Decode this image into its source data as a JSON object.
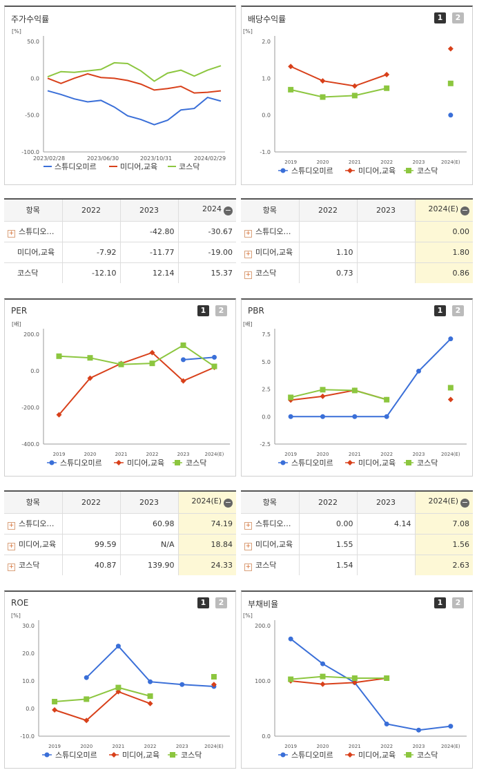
{
  "colors": {
    "company": "#3a6fd8",
    "media": "#d8401a",
    "kosdaq": "#8cc63f",
    "toggle_active": "#333333",
    "toggle_inactive": "#bbbbbb"
  },
  "charts": {
    "stock": {
      "title": "주가수익률",
      "unit": "[%]",
      "toggle": null
    },
    "dividend": {
      "title": "배당수익률",
      "unit": "[%]",
      "toggle": [
        "1",
        "2"
      ]
    },
    "per": {
      "title": "PER",
      "unit": "[배]",
      "toggle": [
        "1",
        "2"
      ]
    },
    "pbr": {
      "title": "PBR",
      "unit": "[배]",
      "toggle": [
        "1",
        "2"
      ]
    },
    "roe": {
      "title": "ROE",
      "unit": "[%]",
      "toggle": [
        "1",
        "2"
      ]
    },
    "debt": {
      "title": "부채비율",
      "unit": "[%]",
      "toggle": [
        "1",
        "2"
      ]
    }
  },
  "legend": {
    "company": "스튜디오미르",
    "media": "미디어,교육",
    "kosdaq": "코스닥"
  },
  "tables": {
    "stock": {
      "headers": [
        "항목",
        "2022",
        "2023",
        "2024"
      ],
      "rows": [
        {
          "name": "스튜디오…",
          "plus": true,
          "v": [
            "",
            "-42.80",
            "-30.67"
          ]
        },
        {
          "name": "미디어,교육",
          "plus": false,
          "v": [
            "-7.92",
            "-11.77",
            "-19.00"
          ]
        },
        {
          "name": "코스닥",
          "plus": false,
          "v": [
            "-12.10",
            "12.14",
            "15.37"
          ]
        }
      ]
    },
    "dividend": {
      "headers": [
        "항목",
        "2022",
        "2023",
        "2024(E)"
      ],
      "rows": [
        {
          "name": "스튜디오…",
          "plus": true,
          "v": [
            "",
            "",
            "0.00"
          ]
        },
        {
          "name": "미디어,교육",
          "plus": true,
          "v": [
            "1.10",
            "",
            "1.80"
          ]
        },
        {
          "name": "코스닥",
          "plus": true,
          "v": [
            "0.73",
            "",
            "0.86"
          ]
        }
      ]
    },
    "per": {
      "headers": [
        "항목",
        "2022",
        "2023",
        "2024(E)"
      ],
      "rows": [
        {
          "name": "스튜디오…",
          "plus": true,
          "v": [
            "",
            "60.98",
            "74.19"
          ]
        },
        {
          "name": "미디어,교육",
          "plus": true,
          "v": [
            "99.59",
            "N/A",
            "18.84"
          ]
        },
        {
          "name": "코스닥",
          "plus": true,
          "v": [
            "40.87",
            "139.90",
            "24.33"
          ]
        }
      ]
    },
    "pbr": {
      "headers": [
        "항목",
        "2022",
        "2023",
        "2024(E)"
      ],
      "rows": [
        {
          "name": "스튜디오…",
          "plus": true,
          "v": [
            "0.00",
            "4.14",
            "7.08"
          ]
        },
        {
          "name": "미디어,교육",
          "plus": true,
          "v": [
            "1.55",
            "",
            "1.56"
          ]
        },
        {
          "name": "코스닥",
          "plus": true,
          "v": [
            "1.54",
            "",
            "2.63"
          ]
        }
      ]
    }
  },
  "chart_data": [
    {
      "type": "line",
      "title": "주가수익률",
      "ylabel": "[%]",
      "ylim": [
        -100,
        50
      ],
      "yticks": [
        "50.0",
        "0.0",
        "-50.0",
        "-100.0"
      ],
      "x_tick_labels": [
        "2023/02/28",
        "2023/06/30",
        "2023/10/31",
        "2024/02/29"
      ],
      "series": [
        {
          "name": "스튜디오미르",
          "values": [
            -17,
            -22,
            -28,
            -32,
            -30,
            -39,
            -51,
            -56,
            -63,
            -57,
            -43,
            -41,
            -26,
            -31
          ]
        },
        {
          "name": "미디어,교육",
          "values": [
            0,
            -7,
            0,
            6,
            1,
            0,
            -3,
            -8,
            -16,
            -14,
            -11,
            -20,
            -19,
            -17
          ]
        },
        {
          "name": "코스닥",
          "values": [
            2,
            9,
            8,
            10,
            12,
            21,
            20,
            10,
            -4,
            7,
            11,
            3,
            11,
            17
          ]
        }
      ]
    },
    {
      "type": "line",
      "title": "배당수익률",
      "ylabel": "[%]",
      "ylim": [
        -1,
        2
      ],
      "yticks": [
        "2.0",
        "1.0",
        "0.0",
        "-1.0"
      ],
      "categories": [
        "2019",
        "2020",
        "2021",
        "2022",
        "2023",
        "2024(E)"
      ],
      "series": [
        {
          "name": "스튜디오미르",
          "values": [
            null,
            null,
            null,
            null,
            null,
            0.0
          ]
        },
        {
          "name": "미디어,교육",
          "values": [
            1.32,
            0.93,
            0.79,
            1.1,
            null,
            1.8
          ]
        },
        {
          "name": "코스닥",
          "values": [
            0.69,
            0.49,
            0.53,
            0.73,
            null,
            0.86
          ]
        }
      ]
    },
    {
      "type": "line",
      "title": "PER",
      "ylabel": "[배]",
      "ylim": [
        -400,
        200
      ],
      "yticks": [
        "200.0",
        "0.0",
        "-200.0",
        "-400.0"
      ],
      "categories": [
        "2019",
        "2020",
        "2021",
        "2022",
        "2023",
        "2024(E)"
      ],
      "series": [
        {
          "name": "스튜디오미르",
          "values": [
            null,
            null,
            null,
            null,
            60.98,
            74.19
          ]
        },
        {
          "name": "미디어,교육",
          "values": [
            -240,
            -40,
            40,
            99.59,
            -55,
            18.84
          ]
        },
        {
          "name": "코스닥",
          "values": [
            80,
            71,
            35,
            40.87,
            139.9,
            24.33
          ]
        }
      ]
    },
    {
      "type": "line",
      "title": "PBR",
      "ylabel": "[배]",
      "ylim": [
        -2.5,
        7.5
      ],
      "yticks": [
        "7.5",
        "5.0",
        "2.5",
        "0.0",
        "-2.5"
      ],
      "categories": [
        "2019",
        "2020",
        "2021",
        "2022",
        "2023",
        "2024(E)"
      ],
      "series": [
        {
          "name": "스튜디오미르",
          "values": [
            0.0,
            0.0,
            0.0,
            0.0,
            4.14,
            7.08
          ]
        },
        {
          "name": "미디어,교육",
          "values": [
            1.5,
            1.85,
            2.4,
            1.55,
            null,
            1.56
          ]
        },
        {
          "name": "코스닥",
          "values": [
            1.75,
            2.45,
            2.38,
            1.54,
            null,
            2.63
          ]
        }
      ]
    },
    {
      "type": "line",
      "title": "ROE",
      "ylabel": "[%]",
      "ylim": [
        -10,
        30
      ],
      "yticks": [
        "30.0",
        "20.0",
        "10.0",
        "0.0",
        "-10.0"
      ],
      "categories": [
        "2019",
        "2020",
        "2021",
        "2022",
        "2023",
        "2024(E)"
      ],
      "series": [
        {
          "name": "스튜디오미르",
          "values": [
            null,
            11.2,
            22.6,
            9.7,
            8.7,
            8.0
          ]
        },
        {
          "name": "미디어,교육",
          "values": [
            -0.5,
            -4.3,
            6.1,
            1.8,
            null,
            8.7
          ]
        },
        {
          "name": "코스닥",
          "values": [
            2.5,
            3.4,
            7.6,
            4.5,
            null,
            11.5
          ]
        }
      ]
    },
    {
      "type": "line",
      "title": "부채비율",
      "ylabel": "[%]",
      "ylim": [
        0,
        200
      ],
      "yticks": [
        "200.0",
        "100.0",
        "0.0"
      ],
      "categories": [
        "2019",
        "2020",
        "2021",
        "2022",
        "2023",
        "2024(E)"
      ],
      "series": [
        {
          "name": "스튜디오미르",
          "values": [
            176,
            131,
            97,
            22,
            11,
            18
          ]
        },
        {
          "name": "미디어,교육",
          "values": [
            100,
            94,
            97,
            105,
            null,
            null
          ]
        },
        {
          "name": "코스닥",
          "values": [
            103,
            108,
            105,
            105,
            null,
            null
          ]
        }
      ]
    }
  ]
}
